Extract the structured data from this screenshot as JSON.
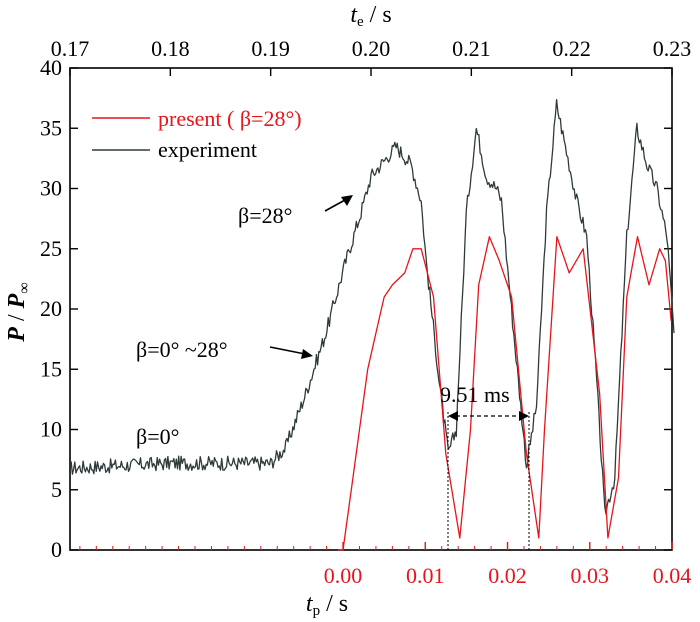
{
  "chart_data": {
    "type": "line",
    "top_axis": {
      "label_var": "t",
      "label_sub": "e",
      "label_unit": " / s",
      "ticks": [
        "0.17",
        "0.18",
        "0.19",
        "0.20",
        "0.21",
        "0.22",
        "0.23"
      ],
      "range": [
        0.17,
        0.23
      ]
    },
    "bottom_axis": {
      "label_var": "t",
      "label_sub": "p",
      "label_unit": " / s",
      "ticks": [
        "0.00",
        "0.01",
        "0.02",
        "0.03",
        "0.04"
      ],
      "range": [
        -0.0332,
        0.04
      ],
      "color": "#e8141c"
    },
    "y_axis": {
      "label_P": "P",
      "label_slash": " / ",
      "label_Pinf": "P",
      "label_sub": "∞",
      "ticks": [
        "0",
        "5",
        "10",
        "15",
        "20",
        "25",
        "30",
        "35",
        "40"
      ],
      "range": [
        0,
        40
      ]
    },
    "legend": {
      "position": "top-left",
      "items": [
        {
          "label": "present ( β=28°)",
          "color": "#e8141c"
        },
        {
          "label": "experiment",
          "color": "#2f3b3b"
        }
      ]
    },
    "annotations": {
      "beta0": "β=0°",
      "beta_range": "β=0° ~28°",
      "beta28": "β=28°",
      "period": "9.51 ms"
    },
    "series": [
      {
        "name": "experiment",
        "color": "#2f3b3b",
        "x_axis": "top",
        "x": [
          0.17,
          0.18,
          0.19,
          0.1915,
          0.1935,
          0.1955,
          0.1975,
          0.199,
          0.2,
          0.2015,
          0.2025,
          0.204,
          0.205,
          0.2055,
          0.2068,
          0.2077,
          0.2085,
          0.2095,
          0.2105,
          0.2115,
          0.2125,
          0.213,
          0.214,
          0.2155,
          0.2165,
          0.2175,
          0.2185,
          0.2195,
          0.2205,
          0.2215,
          0.2225,
          0.2233,
          0.2243,
          0.2255,
          0.2265,
          0.2275,
          0.2285,
          0.2295,
          0.2302
        ],
        "y": [
          6.8,
          7.2,
          7.2,
          8.5,
          13,
          18,
          24,
          28,
          31,
          32.5,
          33.5,
          32,
          29,
          24,
          14,
          8,
          10,
          28,
          35,
          31,
          30,
          29,
          20,
          7,
          12,
          28,
          37,
          33,
          29,
          26,
          14,
          3,
          6,
          26,
          35,
          32,
          30,
          26,
          18
        ]
      },
      {
        "name": "present (β=28°)",
        "color": "#e8141c",
        "x_axis": "bottom",
        "x": [
          -0.0006,
          0.0,
          0.001,
          0.002,
          0.003,
          0.004,
          0.005,
          0.006,
          0.0075,
          0.0085,
          0.0095,
          0.011,
          0.0125,
          0.0142,
          0.0155,
          0.0165,
          0.0178,
          0.019,
          0.0205,
          0.0223,
          0.0238,
          0.0245,
          0.026,
          0.0275,
          0.0292,
          0.0312,
          0.0322,
          0.0335,
          0.0345,
          0.0358,
          0.0372,
          0.0385,
          0.0392,
          0.0399
        ],
        "y": [
          0,
          0,
          5,
          10,
          15,
          18,
          21,
          22,
          23,
          25,
          25,
          21,
          8,
          1,
          10,
          22,
          26,
          24,
          21,
          8,
          1,
          10,
          26,
          23,
          25,
          13,
          1,
          6,
          21,
          26,
          22,
          25,
          24,
          19
        ]
      }
    ]
  }
}
